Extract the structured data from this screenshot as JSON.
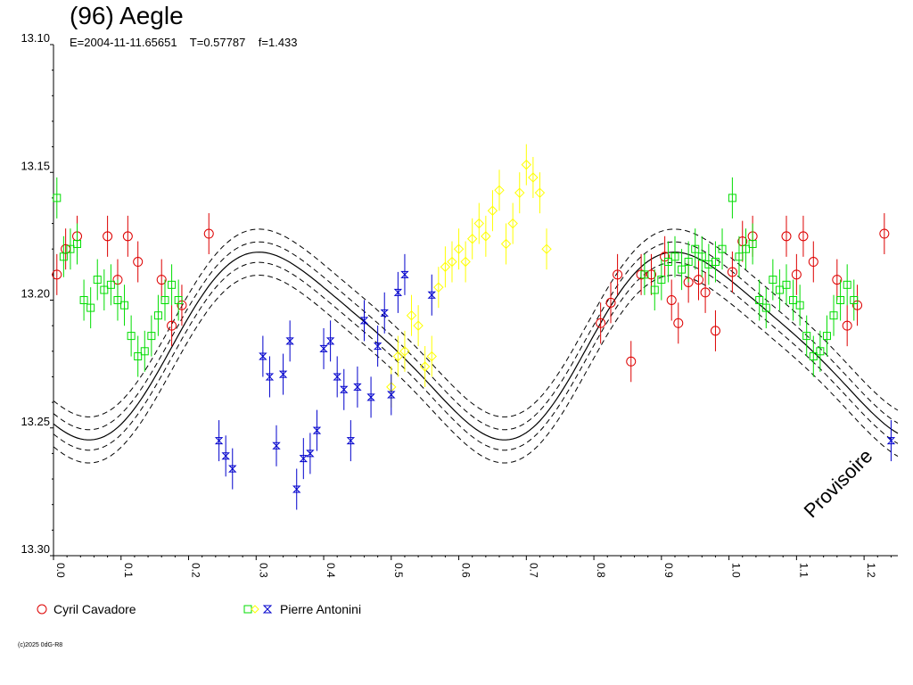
{
  "chart_data": {
    "type": "scatter",
    "title": "(96) Aegle",
    "subtitle": "E=2004-11-11.65651    T=0.57787    f=1.433",
    "xlabel": "",
    "ylabel": "",
    "xlim": [
      0.0,
      1.25
    ],
    "ylim": [
      13.1,
      13.3
    ],
    "y_inverted": true,
    "x_ticks": [
      "0.0",
      "0.1",
      "0.2",
      "0.3",
      "0.4",
      "0.5",
      "0.6",
      "0.7",
      "0.8",
      "0.9",
      "1.0",
      "1.1",
      "1.2"
    ],
    "y_ticks": [
      "13.10",
      "13.15",
      "13.20",
      "13.25",
      "13.30"
    ],
    "watermark": "Provisoire",
    "copyright": "(c)2025 0dG-R8",
    "colors": {
      "red": "#dd0000",
      "green": "#00dd00",
      "yellow": "#ffff00",
      "blue": "#0000cc",
      "curve": "#000000"
    },
    "series": [
      {
        "name": "Cyril Cavadore",
        "marker": "circle",
        "color": "#dd0000",
        "points": [
          [
            0.005,
            13.19
          ],
          [
            0.018,
            13.18
          ],
          [
            0.035,
            13.175
          ],
          [
            0.08,
            13.175
          ],
          [
            0.095,
            13.192
          ],
          [
            0.11,
            13.175
          ],
          [
            0.125,
            13.185
          ],
          [
            0.16,
            13.192
          ],
          [
            0.175,
            13.21
          ],
          [
            0.19,
            13.202
          ],
          [
            0.23,
            13.174
          ],
          [
            0.81,
            13.209
          ],
          [
            0.825,
            13.201
          ],
          [
            0.835,
            13.19
          ],
          [
            0.855,
            13.224
          ],
          [
            0.87,
            13.19
          ],
          [
            0.885,
            13.19
          ],
          [
            0.905,
            13.183
          ],
          [
            0.915,
            13.2
          ],
          [
            0.925,
            13.209
          ],
          [
            0.94,
            13.193
          ],
          [
            0.955,
            13.192
          ],
          [
            0.965,
            13.197
          ],
          [
            0.98,
            13.212
          ],
          [
            1.005,
            13.189
          ],
          [
            1.02,
            13.177
          ],
          [
            1.035,
            13.175
          ],
          [
            1.085,
            13.175
          ],
          [
            1.1,
            13.19
          ],
          [
            1.11,
            13.175
          ],
          [
            1.125,
            13.185
          ],
          [
            1.16,
            13.192
          ],
          [
            1.175,
            13.21
          ],
          [
            1.19,
            13.202
          ],
          [
            1.23,
            13.174
          ]
        ]
      },
      {
        "name": "Pierre Antonini",
        "marker": "square",
        "color": "#00dd00",
        "points": [
          [
            0.005,
            13.16
          ],
          [
            0.015,
            13.183
          ],
          [
            0.025,
            13.18
          ],
          [
            0.035,
            13.178
          ],
          [
            0.045,
            13.2
          ],
          [
            0.055,
            13.203
          ],
          [
            0.065,
            13.192
          ],
          [
            0.075,
            13.196
          ],
          [
            0.085,
            13.194
          ],
          [
            0.095,
            13.2
          ],
          [
            0.105,
            13.202
          ],
          [
            0.115,
            13.214
          ],
          [
            0.125,
            13.222
          ],
          [
            0.135,
            13.22
          ],
          [
            0.145,
            13.214
          ],
          [
            0.155,
            13.206
          ],
          [
            0.165,
            13.2
          ],
          [
            0.175,
            13.194
          ],
          [
            0.185,
            13.2
          ],
          [
            0.875,
            13.19
          ],
          [
            0.89,
            13.196
          ],
          [
            0.9,
            13.192
          ],
          [
            0.91,
            13.185
          ],
          [
            0.92,
            13.183
          ],
          [
            0.93,
            13.188
          ],
          [
            0.94,
            13.185
          ],
          [
            0.95,
            13.18
          ],
          [
            0.96,
            13.183
          ],
          [
            0.97,
            13.186
          ],
          [
            0.98,
            13.185
          ],
          [
            0.99,
            13.18
          ],
          [
            1.005,
            13.16
          ],
          [
            1.015,
            13.183
          ],
          [
            1.025,
            13.18
          ],
          [
            1.035,
            13.178
          ],
          [
            1.045,
            13.2
          ],
          [
            1.055,
            13.203
          ],
          [
            1.065,
            13.192
          ],
          [
            1.075,
            13.196
          ],
          [
            1.085,
            13.194
          ],
          [
            1.095,
            13.2
          ],
          [
            1.105,
            13.202
          ],
          [
            1.115,
            13.214
          ],
          [
            1.125,
            13.222
          ],
          [
            1.135,
            13.22
          ],
          [
            1.145,
            13.214
          ],
          [
            1.155,
            13.206
          ],
          [
            1.165,
            13.2
          ],
          [
            1.175,
            13.194
          ],
          [
            1.185,
            13.2
          ]
        ]
      },
      {
        "name": "",
        "marker": "diamond",
        "color": "#ffff00",
        "points": [
          [
            0.5,
            13.234
          ],
          [
            0.51,
            13.222
          ],
          [
            0.52,
            13.22
          ],
          [
            0.53,
            13.206
          ],
          [
            0.54,
            13.21
          ],
          [
            0.55,
            13.226
          ],
          [
            0.56,
            13.222
          ],
          [
            0.57,
            13.195
          ],
          [
            0.58,
            13.187
          ],
          [
            0.59,
            13.185
          ],
          [
            0.6,
            13.18
          ],
          [
            0.61,
            13.185
          ],
          [
            0.62,
            13.176
          ],
          [
            0.63,
            13.17
          ],
          [
            0.64,
            13.175
          ],
          [
            0.65,
            13.165
          ],
          [
            0.66,
            13.157
          ],
          [
            0.67,
            13.178
          ],
          [
            0.68,
            13.17
          ],
          [
            0.69,
            13.158
          ],
          [
            0.7,
            13.147
          ],
          [
            0.71,
            13.152
          ],
          [
            0.72,
            13.158
          ],
          [
            0.73,
            13.18
          ]
        ]
      },
      {
        "name": "",
        "marker": "hourglass",
        "color": "#0000cc",
        "points": [
          [
            0.245,
            13.255
          ],
          [
            0.255,
            13.261
          ],
          [
            0.265,
            13.266
          ],
          [
            0.31,
            13.222
          ],
          [
            0.32,
            13.23
          ],
          [
            0.33,
            13.257
          ],
          [
            0.34,
            13.229
          ],
          [
            0.35,
            13.216
          ],
          [
            0.36,
            13.274
          ],
          [
            0.37,
            13.262
          ],
          [
            0.38,
            13.26
          ],
          [
            0.39,
            13.251
          ],
          [
            0.4,
            13.219
          ],
          [
            0.41,
            13.216
          ],
          [
            0.42,
            13.23
          ],
          [
            0.43,
            13.235
          ],
          [
            0.44,
            13.255
          ],
          [
            0.45,
            13.234
          ],
          [
            0.46,
            13.208
          ],
          [
            0.47,
            13.238
          ],
          [
            0.48,
            13.218
          ],
          [
            0.49,
            13.205
          ],
          [
            0.5,
            13.237
          ],
          [
            0.51,
            13.197
          ],
          [
            0.52,
            13.19
          ],
          [
            0.56,
            13.198
          ],
          [
            1.24,
            13.255
          ]
        ]
      }
    ],
    "fit_curve": {
      "formula": "13.2167 + 0.035*cos(2*pi*(x-0.028)/0.615) + 0.006*cos(4*pi*(x-0.4)/0.615)",
      "offsets": [
        0.004,
        -0.004,
        0.009,
        -0.009
      ]
    }
  },
  "legend": [
    {
      "label": "Cyril Cavadore",
      "marker": "circle"
    },
    {
      "label": "Pierre Antonini",
      "marker": "multi"
    }
  ]
}
